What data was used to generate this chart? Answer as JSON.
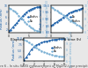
{
  "fig_background": "#e8e8e8",
  "subplot_background": "#ffffff",
  "top_left": {
    "title": "",
    "xlabel": "Elapsed time (h)",
    "ylabel_left": "Radius (nm)",
    "ylabel_right": "Number density (m-3)",
    "x": [
      0,
      0.5,
      1,
      1.5,
      2,
      2.5,
      3,
      3.5,
      4,
      4.5,
      5,
      5.5,
      6,
      6.5,
      7,
      7.5,
      8
    ],
    "radius": [
      1.5,
      2.0,
      2.8,
      3.5,
      4.2,
      5.0,
      5.8,
      6.5,
      7.2,
      7.8,
      8.3,
      8.7,
      9.0,
      9.2,
      9.4,
      9.5,
      9.6
    ],
    "number_density": [
      9.6,
      9.5,
      9.3,
      9.1,
      8.8,
      8.5,
      8.2,
      7.9,
      7.6,
      7.3,
      7.0,
      6.8,
      6.6,
      6.4,
      6.3,
      6.2,
      6.1
    ],
    "radius_color": "#1a5fa8",
    "nd_color": "#7ab0d4",
    "radius_label": "Radius",
    "nd_label": "Nv",
    "xlim": [
      0,
      8
    ],
    "ylim_left": [
      1,
      10
    ],
    "ylim_right": [
      6,
      10
    ]
  },
  "top_right": {
    "title": "",
    "xlabel": "Elapsed time (h)",
    "ylabel_left": "Radius (nm)",
    "ylabel_right": "Number density (m-3)",
    "x": [
      0,
      0.5,
      1,
      1.5,
      2,
      2.5,
      3,
      3.5,
      4,
      4.5,
      5,
      5.5,
      6,
      6.5,
      7,
      7.5,
      8
    ],
    "radius": [
      8.5,
      8.6,
      8.7,
      8.8,
      8.9,
      9.0,
      9.1,
      9.2,
      9.3,
      9.4,
      9.5,
      9.55,
      9.6,
      9.65,
      9.7,
      9.75,
      9.8
    ],
    "number_density": [
      9.8,
      9.6,
      9.4,
      9.2,
      9.0,
      8.8,
      8.6,
      8.4,
      8.2,
      8.0,
      7.8,
      7.6,
      7.4,
      7.2,
      7.0,
      6.8,
      6.6
    ],
    "radius_color": "#1a5fa8",
    "nd_color": "#7ab0d4",
    "radius_label": "Nv",
    "nd_label": "Radius",
    "xlim": [
      0,
      8
    ],
    "ylim_left": [
      8,
      10
    ],
    "ylim_right": [
      6,
      10
    ]
  },
  "bottom": {
    "title": "",
    "xlabel": "Elapsed time (h)",
    "ylabel_left": "Radius (nm)",
    "ylabel_right": "Number density (m-3)",
    "x": [
      0,
      0.5,
      1,
      1.5,
      2,
      2.5,
      3,
      3.5,
      4,
      4.5,
      5,
      5.5,
      6,
      6.5,
      7,
      7.5,
      8
    ],
    "radius": [
      1.5,
      2.5,
      4.0,
      5.5,
      6.5,
      7.2,
      7.8,
      8.2,
      8.5,
      8.8,
      9.0,
      9.2,
      9.4,
      9.5,
      9.6,
      9.65,
      9.7
    ],
    "number_density": [
      9.7,
      9.5,
      9.2,
      8.9,
      8.6,
      8.3,
      8.0,
      7.8,
      7.6,
      7.4,
      7.2,
      7.1,
      7.0,
      6.9,
      6.85,
      6.8,
      6.75
    ],
    "radius_color": "#1a5fa8",
    "nd_color": "#7ab0d4",
    "radius_label": "Radius",
    "nd_label": "Nv",
    "xlim": [
      0,
      8
    ],
    "ylim_left": [
      1,
      10
    ],
    "ylim_right": [
      6,
      10
    ]
  },
  "fig_caption": "Figure 6 - In situ SAXS measurement of MgZn2-type precipitates",
  "caption_fontsize": 2.5,
  "axis_fontsize": 2.8,
  "tick_fontsize": 2.2,
  "legend_fontsize": 2.2,
  "line_width": 0.6,
  "marker_size": 0.7
}
